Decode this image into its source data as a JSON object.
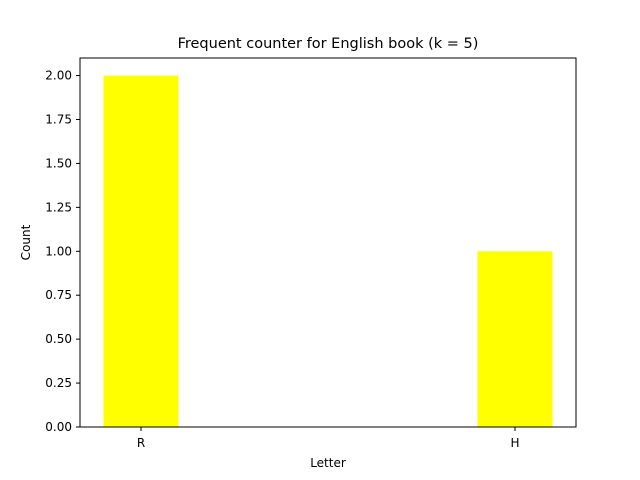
{
  "chart_data": {
    "type": "bar",
    "title": "Frequent counter for English book (k = 5)",
    "xlabel": "Letter",
    "ylabel": "Count",
    "categories": [
      "R",
      "H"
    ],
    "values": [
      2,
      1
    ],
    "ylim": [
      0,
      2.1
    ],
    "yticks": [
      "0.00",
      "0.25",
      "0.50",
      "0.75",
      "1.00",
      "1.25",
      "1.50",
      "1.75",
      "2.00"
    ],
    "bar_color": "#ffff00",
    "grid": false,
    "legend": "none"
  }
}
